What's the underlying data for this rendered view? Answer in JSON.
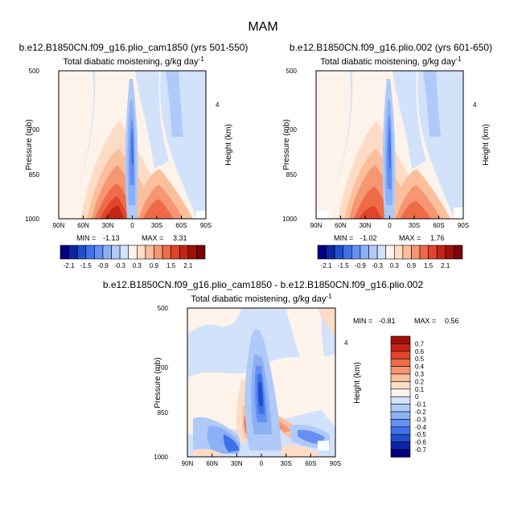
{
  "figure": {
    "title": "MAM"
  },
  "chart_data": [
    {
      "type": "heatmap",
      "run": "b.e12.B1850CN.f09_g16.plio_cam1850 (yrs 501-550)",
      "title": "Total diabatic moistening",
      "units": "g/kg day",
      "units_exp": "-1",
      "ylabel": "Pressure (mb)",
      "y2label": "Height (km)",
      "xticks": [
        "90N",
        "60N",
        "30N",
        "0",
        "30S",
        "60S",
        "90S"
      ],
      "yticks": [
        "500",
        "700",
        "850",
        "1000"
      ],
      "y2ticks": [
        "4"
      ],
      "xlim": [
        90,
        -90
      ],
      "ylim": [
        1000,
        500
      ],
      "min_label": "MIN =",
      "min_value": "-1.13",
      "max_label": "MAX =",
      "max_value": "3.31"
    },
    {
      "type": "heatmap",
      "run": "b.e12.B1850CN.f09_g16.plio.002 (yrs 601-650)",
      "title": "Total diabatic moistening",
      "units": "g/kg day",
      "units_exp": "-1",
      "ylabel": "Pressure (mb)",
      "y2label": "Height (km)",
      "xticks": [
        "90N",
        "60N",
        "30N",
        "0",
        "30S",
        "60S",
        "90S"
      ],
      "yticks": [
        "500",
        "700",
        "850",
        "1000"
      ],
      "y2ticks": [
        "4"
      ],
      "xlim": [
        90,
        -90
      ],
      "ylim": [
        1000,
        500
      ],
      "min_label": "MIN =",
      "min_value": "-1.02",
      "max_label": "MAX =",
      "max_value": "1.76"
    },
    {
      "type": "heatmap",
      "run": "b.e12.B1850CN.f09_g16.plio_cam1850 - b.e12.B1850CN.f09_g16.plio.002",
      "title": "Total diabatic moistening",
      "units": "g/kg day",
      "units_exp": "-1",
      "ylabel": "Pressure (mb)",
      "y2label": "Height (km)",
      "xticks": [
        "90N",
        "60N",
        "30N",
        "0",
        "30S",
        "60S",
        "90S"
      ],
      "yticks": [
        "500",
        "700",
        "850",
        "1000"
      ],
      "y2ticks": [
        "4"
      ],
      "xlim": [
        90,
        -90
      ],
      "ylim": [
        1000,
        500
      ],
      "min_label": "MIN =",
      "min_value": "-0.81",
      "max_label": "MAX =",
      "max_value": "0.56"
    }
  ],
  "colorbars": {
    "top": {
      "labels": [
        "-2.1",
        "-1.5",
        "-0.9",
        "-0.3",
        "0.3",
        "0.9",
        "1.5",
        "2.1"
      ],
      "colors": [
        "#000080",
        "#0d24a6",
        "#1f4fcf",
        "#3f71ea",
        "#6590f2",
        "#8cb0f5",
        "#afc9f8",
        "#d2e2fb",
        "#fdf3ea",
        "#fddcc6",
        "#fbbf9c",
        "#f69672",
        "#ef6a47",
        "#e0442a",
        "#c42415",
        "#9e0f08",
        "#7a0404"
      ]
    },
    "bottom": {
      "labels": [
        "0.7",
        "0.6",
        "0.5",
        "0.4",
        "0.3",
        "0.2",
        "0.1",
        "0",
        "-0.1",
        "-0.2",
        "-0.3",
        "-0.4",
        "-0.5",
        "-0.6",
        "-0.7"
      ],
      "colors": [
        "#9e0f08",
        "#c42415",
        "#e0442a",
        "#ef6a47",
        "#f69672",
        "#fbbf9c",
        "#fddcc6",
        "#fdf3ea",
        "#d2e2fb",
        "#afc9f8",
        "#8cb0f5",
        "#6590f2",
        "#3f71ea",
        "#1f4fcf",
        "#0d24a6",
        "#000080"
      ]
    }
  }
}
